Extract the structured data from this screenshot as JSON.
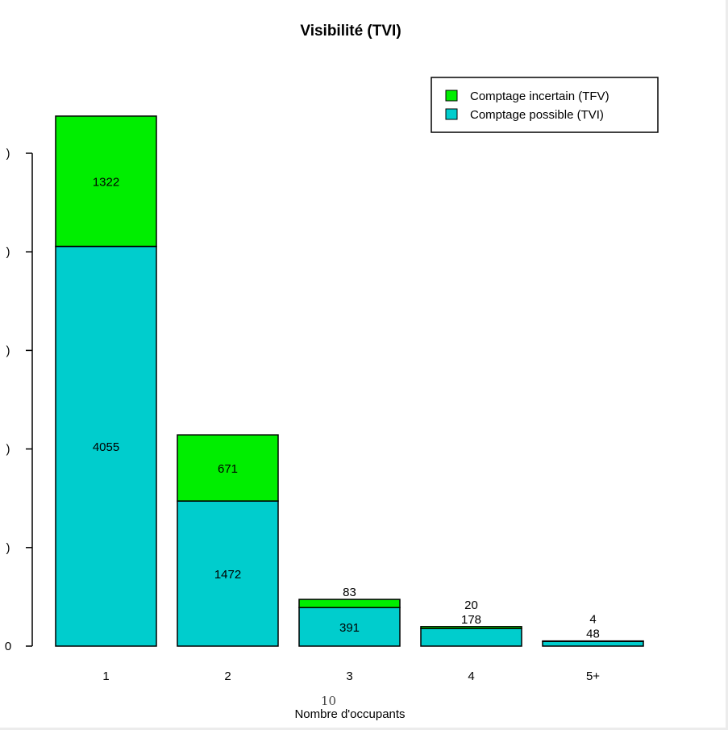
{
  "page_number": "10",
  "chart_data": {
    "type": "bar",
    "stacked": true,
    "title": "Visibilité (TVI)",
    "xlabel": "Nombre d'occupants",
    "ylabel": "",
    "categories": [
      "1",
      "2",
      "3",
      "4",
      "5+"
    ],
    "series": [
      {
        "name": "Comptage possible (TVI)",
        "values": [
          4055,
          1472,
          391,
          178,
          48
        ],
        "color": "#00CDCD"
      },
      {
        "name": "Comptage incertain (TFV)",
        "values": [
          1322,
          671,
          83,
          20,
          4
        ],
        "color": "#00EE00"
      }
    ],
    "y_tick_labels": [
      "0",
      ")",
      ")",
      ")",
      ")",
      ")"
    ],
    "y_tick_values": [
      0,
      1000,
      2000,
      3000,
      4000,
      5000
    ],
    "ylim": [
      0,
      5000
    ],
    "grid": false,
    "legend_position": "top-right",
    "label_color": "#000000",
    "edge_color": "#000000"
  }
}
